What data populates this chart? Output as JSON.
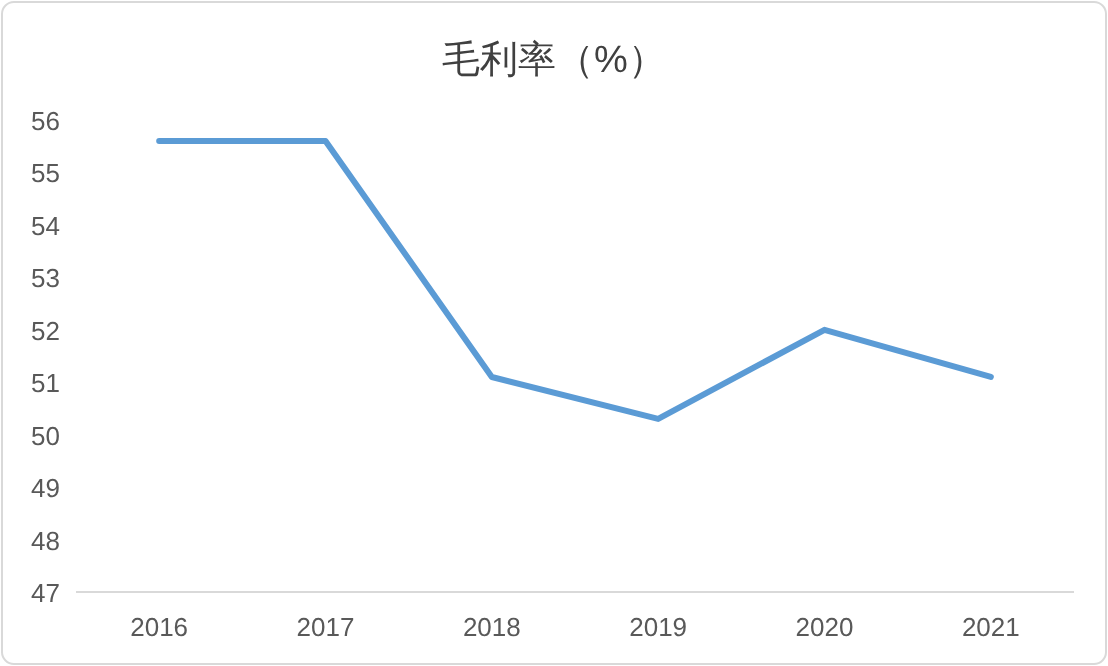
{
  "chart_data": {
    "type": "line",
    "title": "毛利率（%）",
    "categories": [
      "2016",
      "2017",
      "2018",
      "2019",
      "2020",
      "2021"
    ],
    "series": [
      {
        "color": "#5b9bd5",
        "values": [
          55.6,
          55.6,
          51.1,
          50.3,
          52.0,
          51.1
        ]
      }
    ],
    "ylim": [
      47,
      56
    ],
    "yticks": [
      47,
      48,
      49,
      50,
      51,
      52,
      53,
      54,
      55,
      56
    ],
    "grid": false,
    "marker": "none",
    "line_style": "solid"
  }
}
